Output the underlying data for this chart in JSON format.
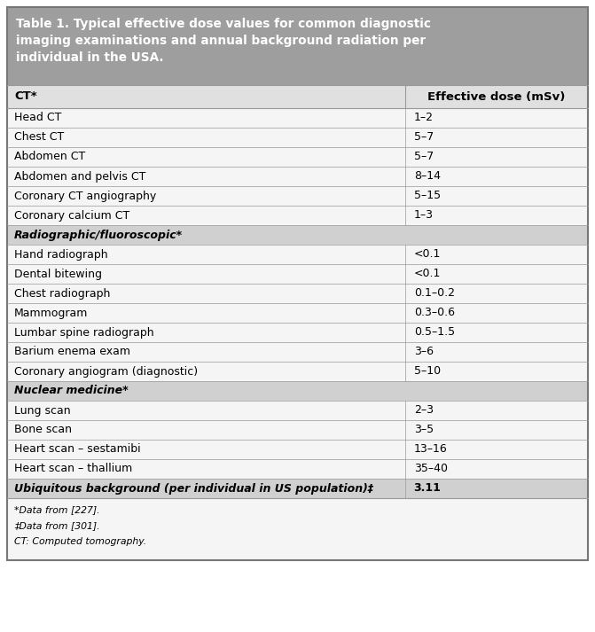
{
  "title": "Table 1. Typical effective dose values for common diagnostic\nimaging examinations and annual background radiation per\nindividual in the USA.",
  "header_col1": "CT*",
  "header_col2": "Effective dose (mSv)",
  "rows": [
    {
      "label": "Head CT",
      "value": "1–2",
      "type": "data"
    },
    {
      "label": "Chest CT",
      "value": "5–7",
      "type": "data"
    },
    {
      "label": "Abdomen CT",
      "value": "5–7",
      "type": "data"
    },
    {
      "label": "Abdomen and pelvis CT",
      "value": "8–14",
      "type": "data"
    },
    {
      "label": "Coronary CT angiography",
      "value": "5–15",
      "type": "data"
    },
    {
      "label": "Coronary calcium CT",
      "value": "1–3",
      "type": "data"
    },
    {
      "label": "Radiographic/fluoroscopic*",
      "value": "",
      "type": "section"
    },
    {
      "label": "Hand radiograph",
      "value": "<0.1",
      "type": "data"
    },
    {
      "label": "Dental bitewing",
      "value": "<0.1",
      "type": "data"
    },
    {
      "label": "Chest radiograph",
      "value": "0.1–0.2",
      "type": "data"
    },
    {
      "label": "Mammogram",
      "value": "0.3–0.6",
      "type": "data"
    },
    {
      "label": "Lumbar spine radiograph",
      "value": "0.5–1.5",
      "type": "data"
    },
    {
      "label": "Barium enema exam",
      "value": "3–6",
      "type": "data"
    },
    {
      "label": "Coronary angiogram (diagnostic)",
      "value": "5–10",
      "type": "data"
    },
    {
      "label": "Nuclear medicine*",
      "value": "",
      "type": "section"
    },
    {
      "label": "Lung scan",
      "value": "2–3",
      "type": "data"
    },
    {
      "label": "Bone scan",
      "value": "3–5",
      "type": "data"
    },
    {
      "label": "Heart scan – sestamibi",
      "value": "13–16",
      "type": "data"
    },
    {
      "label": "Heart scan – thallium",
      "value": "35–40",
      "type": "data"
    },
    {
      "label": "Ubiquitous background (per individual in US population)‡",
      "value": "3.11",
      "type": "footer_row"
    }
  ],
  "footnotes": [
    "*Data from [227].",
    "‡Data from [301].",
    "CT: Computed tomography."
  ],
  "title_bg": "#9e9e9e",
  "header_bg": "#e0e0e0",
  "section_bg": "#d0d0d0",
  "data_bg": "#f5f5f5",
  "footer_row_bg": "#d0d0d0",
  "footnote_bg": "#f5f5f5",
  "border_color": "#999999",
  "outer_border_color": "#777777",
  "title_text_color": "#ffffff",
  "text_color": "#000000",
  "fig_width": 6.71,
  "fig_height": 7.13,
  "dpi": 100
}
